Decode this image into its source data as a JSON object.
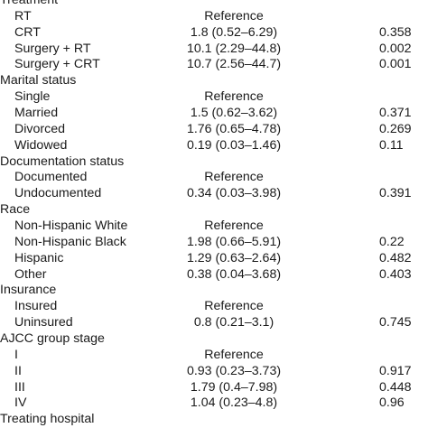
{
  "rows": [
    {
      "label": "Treatment",
      "kind": "header"
    },
    {
      "label": "RT",
      "hr": "Reference",
      "p": "",
      "kind": "item"
    },
    {
      "label": "CRT",
      "hr": "1.8 (0.52–6.29)",
      "p": "0.358",
      "kind": "item"
    },
    {
      "label": "Surgery + RT",
      "hr": "10.1 (2.29–44.8)",
      "p": "0.002",
      "kind": "item"
    },
    {
      "label": "Surgery + CRT",
      "hr": "10.7 (2.56–44.7)",
      "p": "0.001",
      "kind": "item"
    },
    {
      "label": "Marital status",
      "kind": "header"
    },
    {
      "label": "Single",
      "hr": "Reference",
      "p": "",
      "kind": "item"
    },
    {
      "label": "Married",
      "hr": "1.5 (0.62–3.62)",
      "p": "0.371",
      "kind": "item"
    },
    {
      "label": "Divorced",
      "hr": "1.76 (0.65–4.78)",
      "p": "0.269",
      "kind": "item"
    },
    {
      "label": "Widowed",
      "hr": "0.19 (0.03–1.46)",
      "p": "0.11",
      "kind": "item"
    },
    {
      "label": "Documentation status",
      "kind": "header"
    },
    {
      "label": "Documented",
      "hr": "Reference",
      "p": "",
      "kind": "item"
    },
    {
      "label": "Undocumented",
      "hr": "0.34 (0.03–3.98)",
      "p": "0.391",
      "kind": "item"
    },
    {
      "label": "Race",
      "kind": "header"
    },
    {
      "label": "Non-Hispanic White",
      "hr": "Reference",
      "p": "",
      "kind": "item"
    },
    {
      "label": "Non-Hispanic Black",
      "hr": "1.98 (0.66–5.91)",
      "p": "0.22",
      "kind": "item"
    },
    {
      "label": "Hispanic",
      "hr": "1.29 (0.63–2.64)",
      "p": "0.482",
      "kind": "item"
    },
    {
      "label": "Other",
      "hr": "0.38 (0.04–3.68)",
      "p": "0.403",
      "kind": "item"
    },
    {
      "label": "Insurance",
      "kind": "header"
    },
    {
      "label": "Insured",
      "hr": "Reference",
      "p": "",
      "kind": "item"
    },
    {
      "label": "Uninsured",
      "hr": "0.8 (0.21–3.1)",
      "p": "0.745",
      "kind": "item"
    },
    {
      "label": "AJCC group stage",
      "kind": "header"
    },
    {
      "label": "I",
      "hr": "Reference",
      "p": "",
      "kind": "item"
    },
    {
      "label": "II",
      "hr": "0.93 (0.23–3.73)",
      "p": "0.917",
      "kind": "item"
    },
    {
      "label": "III",
      "hr": "1.79 (0.4–7.98)",
      "p": "0.448",
      "kind": "item"
    },
    {
      "label": "IV",
      "hr": "1.04 (0.23–4.8)",
      "p": "0.96",
      "kind": "item"
    },
    {
      "label": "Treating hospital",
      "kind": "header"
    }
  ]
}
